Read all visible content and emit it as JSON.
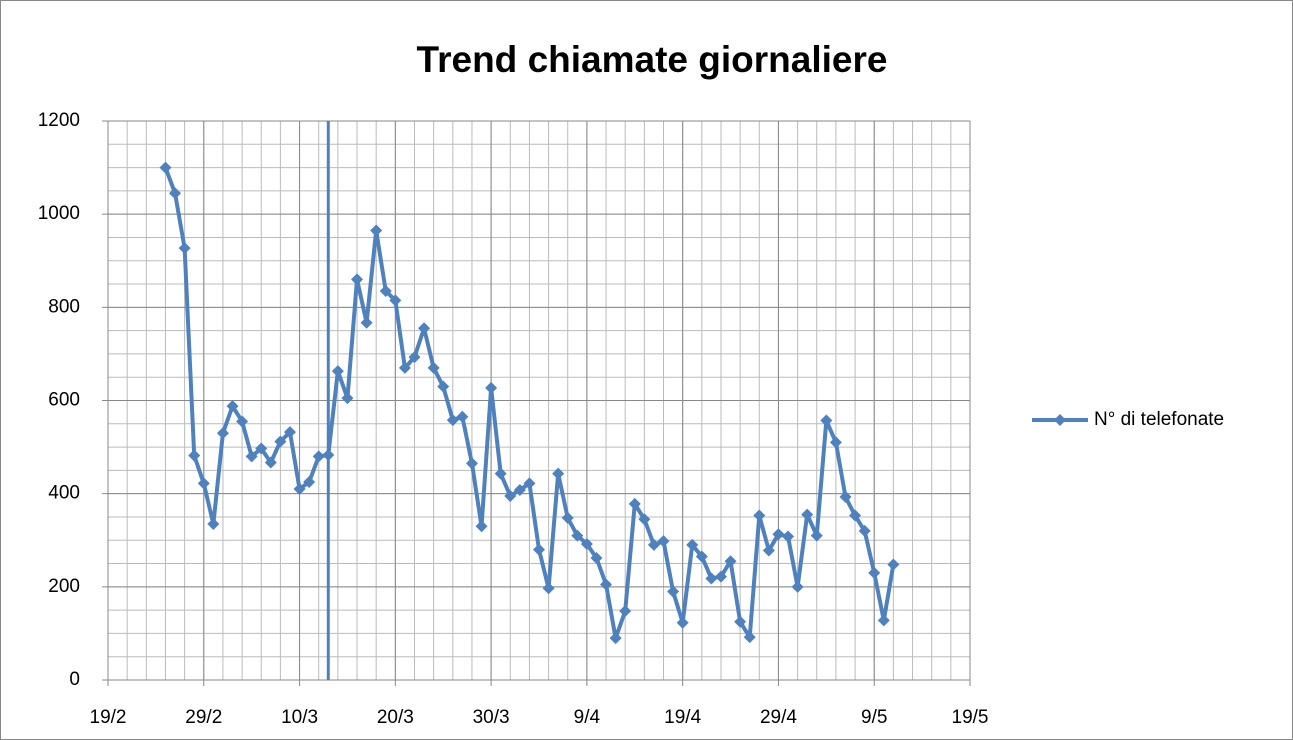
{
  "chart_data": {
    "type": "line",
    "title": "Trend chiamate giornaliere",
    "x": [
      "25/2",
      "26/2",
      "27/2",
      "28/2",
      "29/2",
      "1/3",
      "2/3",
      "3/3",
      "4/3",
      "5/3",
      "6/3",
      "7/3",
      "8/3",
      "9/3",
      "10/3",
      "11/3",
      "12/3",
      "13/3",
      "14/3",
      "15/3",
      "16/3",
      "17/3",
      "18/3",
      "19/3",
      "20/3",
      "21/3",
      "22/3",
      "23/3",
      "24/3",
      "25/3",
      "26/3",
      "27/3",
      "28/3",
      "29/3",
      "30/3",
      "31/3",
      "1/4",
      "2/4",
      "3/4",
      "4/4",
      "5/4",
      "6/4",
      "7/4",
      "8/4",
      "9/4",
      "10/4",
      "11/4",
      "12/4",
      "13/4",
      "14/4",
      "15/4",
      "16/4",
      "17/4",
      "18/4",
      "19/4",
      "20/4",
      "21/4",
      "22/4",
      "23/4",
      "24/4",
      "25/4",
      "26/4",
      "27/4",
      "28/4",
      "29/4",
      "30/4",
      "1/5",
      "2/5",
      "3/5",
      "4/5",
      "5/5",
      "6/5",
      "7/5",
      "8/5",
      "9/5",
      "10/5",
      "11/5"
    ],
    "series": [
      {
        "name": "N° di telefonate",
        "color": "#4f81bd",
        "values": [
          1100,
          1045,
          927,
          482,
          422,
          335,
          530,
          588,
          555,
          480,
          497,
          467,
          512,
          532,
          410,
          425,
          480,
          483,
          663,
          605,
          860,
          767,
          965,
          835,
          815,
          670,
          693,
          755,
          670,
          630,
          558,
          565,
          465,
          330,
          627,
          443,
          395,
          408,
          422,
          280,
          197,
          443,
          348,
          310,
          292,
          262,
          205,
          90,
          148,
          378,
          345,
          290,
          298,
          190,
          123,
          290,
          265,
          218,
          222,
          255,
          125,
          92,
          353,
          278,
          313,
          308,
          200,
          355,
          310,
          557,
          510,
          393,
          353,
          320,
          230,
          128,
          248
        ]
      }
    ],
    "xlim": [
      "19/2",
      "19/5"
    ],
    "xticks": [
      "19/2",
      "29/2",
      "10/3",
      "20/3",
      "30/3",
      "9/4",
      "19/4",
      "29/4",
      "9/5",
      "19/5"
    ],
    "ylim": [
      0,
      1200
    ],
    "yticks": [
      0,
      200,
      400,
      600,
      800,
      1000,
      1200
    ],
    "grid": true,
    "minor_grid": {
      "y": 50,
      "x_days": 2
    },
    "vline": "13/3",
    "legend": "right"
  }
}
